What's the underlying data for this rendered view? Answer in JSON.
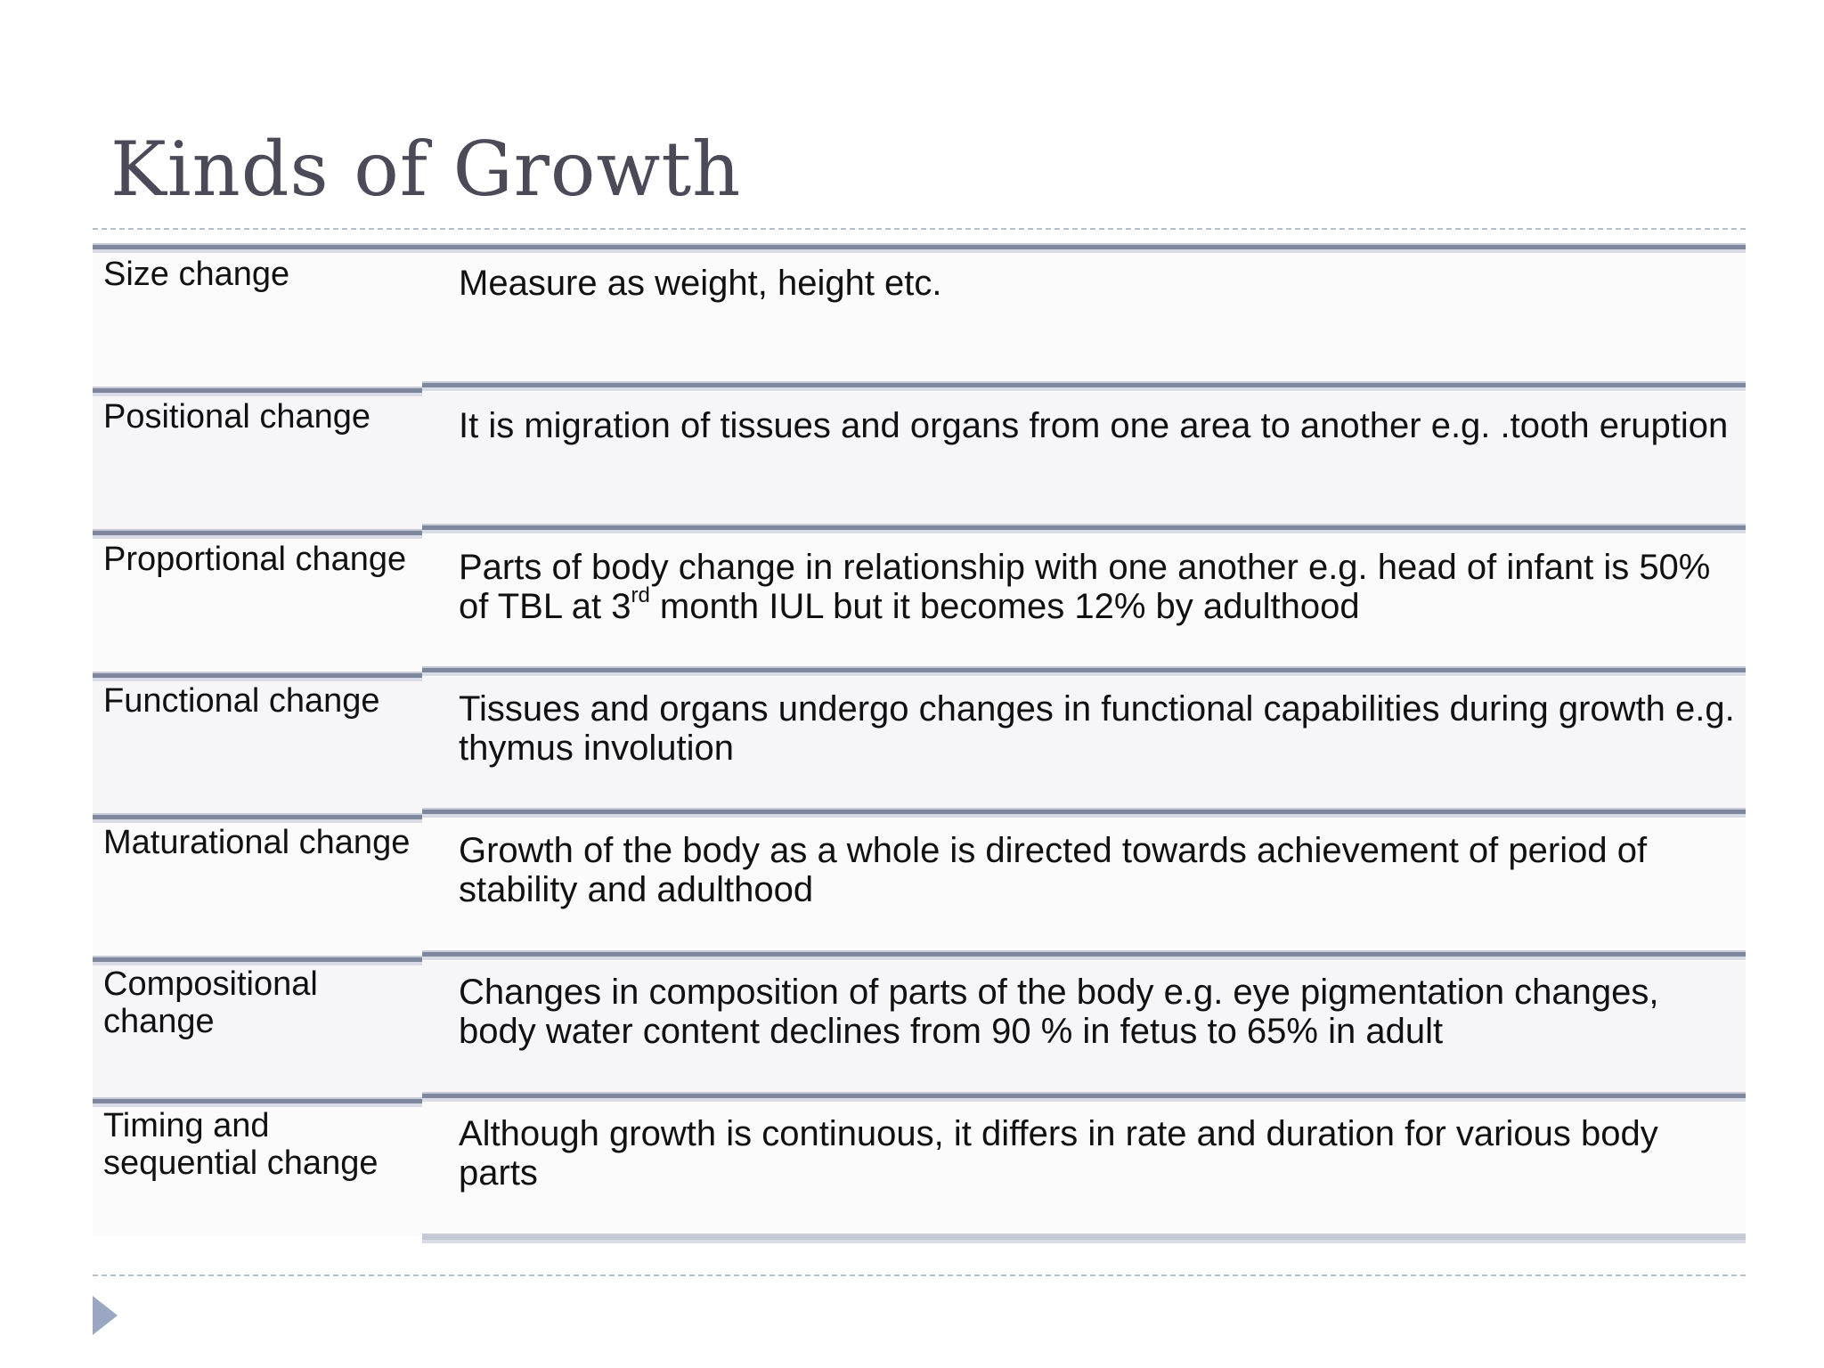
{
  "slide": {
    "title": "Kinds of Growth",
    "rows": [
      {
        "label": "Size change",
        "description": "Measure as weight, height etc."
      },
      {
        "label": "Positional change",
        "description": "It is migration of tissues and organs from one area to another e.g. .tooth eruption"
      },
      {
        "label": "Proportional change",
        "description_part1": "Parts of body change in relationship with one another e.g. head of infant is 50% of TBL at 3",
        "description_sup": "rd",
        "description_part2": " month IUL but it becomes 12% by adulthood"
      },
      {
        "label": "Functional change",
        "description": "Tissues and organs undergo changes in functional capabilities  during growth e.g. thymus involution"
      },
      {
        "label": "Maturational change",
        "description": "Growth of the body as a whole is directed towards achievement of period of stability and adulthood"
      },
      {
        "label": "Compositional change",
        "description": "Changes in composition of parts of the body e.g. eye pigmentation changes, body water content declines from 90 % in fetus to 65% in adult"
      },
      {
        "label": "Timing and sequential change",
        "description": "Although growth is continuous, it differs in rate and duration for various body parts"
      }
    ],
    "nav_icon": "next-slide-triangle-icon",
    "colors": {
      "title": "#4a4a58",
      "rule": "#7f879f",
      "dashed": "#b4c2d0",
      "nav": "#9aa7c3"
    }
  }
}
